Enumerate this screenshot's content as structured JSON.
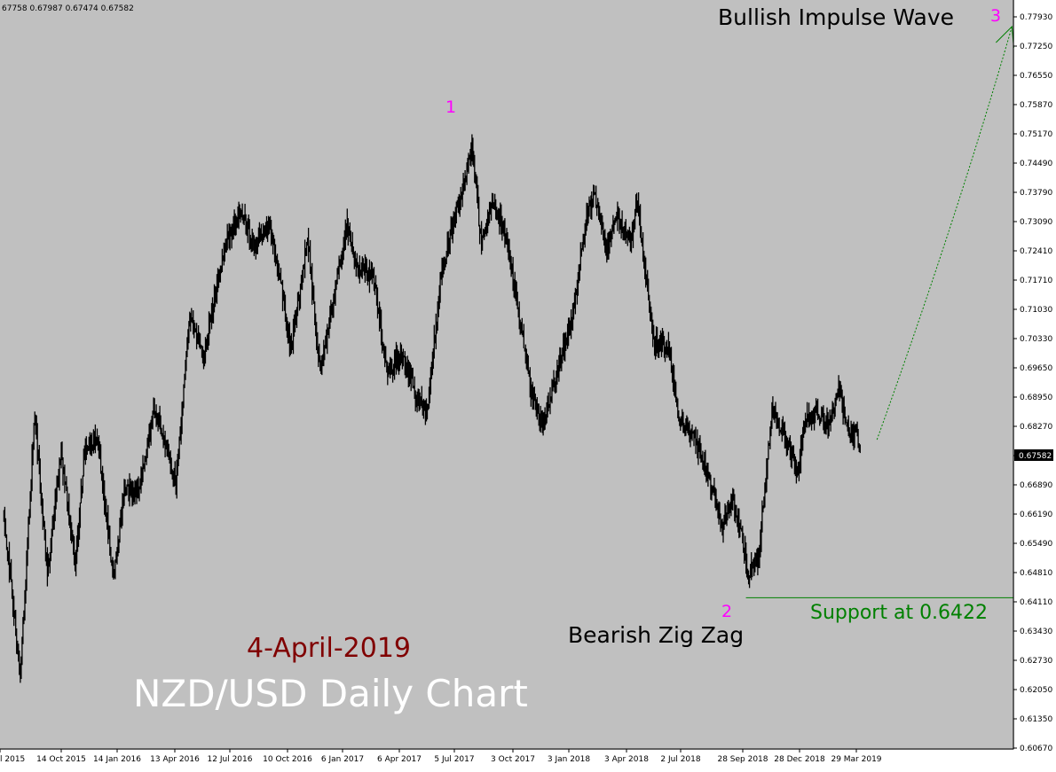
{
  "ohlc_header": "67758 0.67987 0.67474 0.67582",
  "annotations": {
    "title": "NZD/USD Daily Chart",
    "date": "4-April-2019",
    "bullish_label": "Bullish Impulse Wave",
    "bearish_label": "Bearish Zig Zag",
    "support_label": "Support at 0.6422",
    "wave_1": "1",
    "wave_2": "2",
    "wave_3": "3"
  },
  "colors": {
    "background": "#c0c0c0",
    "candles": "#000000",
    "wave_labels": "#ff00ff",
    "support": "#008000",
    "date_text": "#800000",
    "title_text": "#ffffff",
    "projection": "#008000"
  },
  "chart_data": {
    "type": "line",
    "symbol": "NZD/USD",
    "timeframe": "Daily",
    "y_ticks": [
      "0.77930",
      "0.77250",
      "0.76550",
      "0.75870",
      "0.75170",
      "0.74490",
      "0.73790",
      "0.73090",
      "0.72410",
      "0.71710",
      "0.71030",
      "0.70330",
      "0.69650",
      "0.68950",
      "0.68270",
      "0.67582",
      "0.66890",
      "0.66190",
      "0.65490",
      "0.64810",
      "0.64110",
      "0.63430",
      "0.62730",
      "0.62050",
      "0.61350",
      "0.60670"
    ],
    "x_ticks": [
      "l 2015",
      "14 Oct 2015",
      "14 Jan 2016",
      "13 Apr 2016",
      "12 Jul 2016",
      "10 Oct 2016",
      "6 Jan 2017",
      "6 Apr 2017",
      "5 Jul 2017",
      "3 Oct 2017",
      "3 Jan 2018",
      "3 Apr 2018",
      "2 Jul 2018",
      "28 Sep 2018",
      "28 Dec 2018",
      "29 Mar 2019"
    ],
    "current_price": "0.67582",
    "ylim": [
      0.6042,
      0.7844
    ],
    "support_level": 0.6422,
    "series": [
      {
        "dates": [
          "2015-07-15",
          "2015-08-10",
          "2015-09-02",
          "2015-09-22",
          "2015-10-14",
          "2015-11-05",
          "2015-11-20",
          "2015-12-10",
          "2016-01-05",
          "2016-01-22",
          "2016-02-15",
          "2016-03-10",
          "2016-04-13",
          "2016-05-05",
          "2016-05-27",
          "2016-06-20",
          "2016-07-05",
          "2016-07-26",
          "2016-08-15",
          "2016-09-07",
          "2016-09-28",
          "2016-10-12",
          "2016-11-08",
          "2016-11-28",
          "2016-12-15",
          "2017-01-10",
          "2017-01-24",
          "2017-02-20",
          "2017-03-15",
          "2017-04-06",
          "2017-05-01",
          "2017-05-17",
          "2017-06-08",
          "2017-07-05",
          "2017-07-27",
          "2017-08-11",
          "2017-08-28",
          "2017-09-20",
          "2017-10-03",
          "2017-10-30",
          "2017-11-17",
          "2017-12-12",
          "2018-01-03",
          "2018-01-25",
          "2018-02-06",
          "2018-02-26",
          "2018-03-15",
          "2018-04-03",
          "2018-04-16",
          "2018-05-10",
          "2018-06-04",
          "2018-06-20",
          "2018-07-10",
          "2018-08-07",
          "2018-08-27",
          "2018-09-14",
          "2018-09-28",
          "2018-10-09",
          "2018-10-25",
          "2018-11-15",
          "2018-12-04",
          "2018-12-28",
          "2019-01-03",
          "2019-01-24",
          "2019-02-12",
          "2019-03-01",
          "2019-03-18",
          "2019-03-29",
          "2019-04-04"
        ],
        "values": [
          0.662,
          0.624,
          0.686,
          0.648,
          0.676,
          0.65,
          0.677,
          0.68,
          0.647,
          0.667,
          0.668,
          0.687,
          0.669,
          0.709,
          0.699,
          0.718,
          0.727,
          0.733,
          0.725,
          0.731,
          0.715,
          0.701,
          0.727,
          0.695,
          0.709,
          0.73,
          0.721,
          0.718,
          0.695,
          0.7,
          0.689,
          0.686,
          0.719,
          0.735,
          0.749,
          0.725,
          0.736,
          0.727,
          0.715,
          0.69,
          0.683,
          0.697,
          0.709,
          0.732,
          0.738,
          0.724,
          0.733,
          0.725,
          0.736,
          0.703,
          0.701,
          0.684,
          0.681,
          0.671,
          0.659,
          0.665,
          0.657,
          0.648,
          0.652,
          0.686,
          0.681,
          0.671,
          0.683,
          0.686,
          0.683,
          0.691,
          0.681,
          0.681,
          0.676
        ]
      }
    ],
    "wave_points": [
      {
        "label": "1",
        "date": "2017-07-27",
        "value": 0.7558
      },
      {
        "label": "2",
        "date": "2018-10-09",
        "value": 0.6424
      },
      {
        "label": "3",
        "date": "2019-12-01",
        "value": 0.777
      }
    ]
  }
}
